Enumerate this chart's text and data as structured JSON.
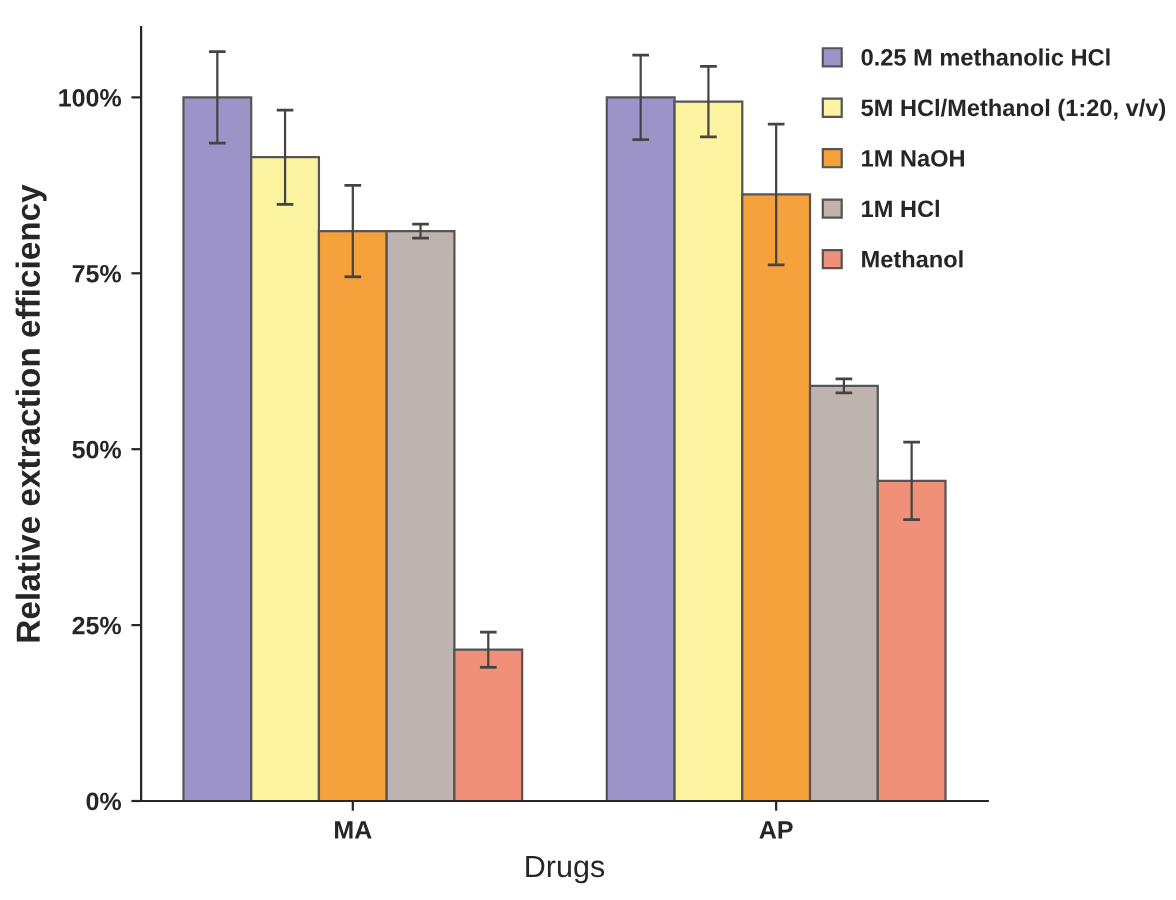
{
  "chart_data": {
    "type": "bar",
    "xlabel": "Drugs",
    "ylabel": "Relative extraction efficiency",
    "categories": [
      "MA",
      "AP"
    ],
    "series": [
      {
        "name": "0.25 M methanolic HCl",
        "color": "#9c94c8",
        "values": [
          100,
          100
        ],
        "errors": [
          6.5,
          6
        ]
      },
      {
        "name": "5M HCl/Methanol (1:20, v/v)",
        "color": "#fbf3a0",
        "values": [
          91.5,
          99.4
        ],
        "errors": [
          6.7,
          5
        ]
      },
      {
        "name": "1M NaOH",
        "color": "#f5a23c",
        "values": [
          81,
          86.2
        ],
        "errors": [
          6.5,
          10
        ]
      },
      {
        "name": "1M HCl",
        "color": "#bdb4b0",
        "values": [
          81,
          59
        ],
        "errors": [
          1,
          1
        ]
      },
      {
        "name": "Methanol",
        "color": "#f09078",
        "values": [
          21.5,
          45.5
        ],
        "errors": [
          2.5,
          5.5
        ]
      }
    ],
    "ylim": [
      0,
      110
    ],
    "yticks": [
      {
        "value": 0,
        "label": "0%"
      },
      {
        "value": 25,
        "label": "25%"
      },
      {
        "value": 50,
        "label": "50%"
      },
      {
        "value": 75,
        "label": "75%"
      },
      {
        "value": 100,
        "label": "100%"
      }
    ],
    "grid": false,
    "legend": "top right"
  }
}
